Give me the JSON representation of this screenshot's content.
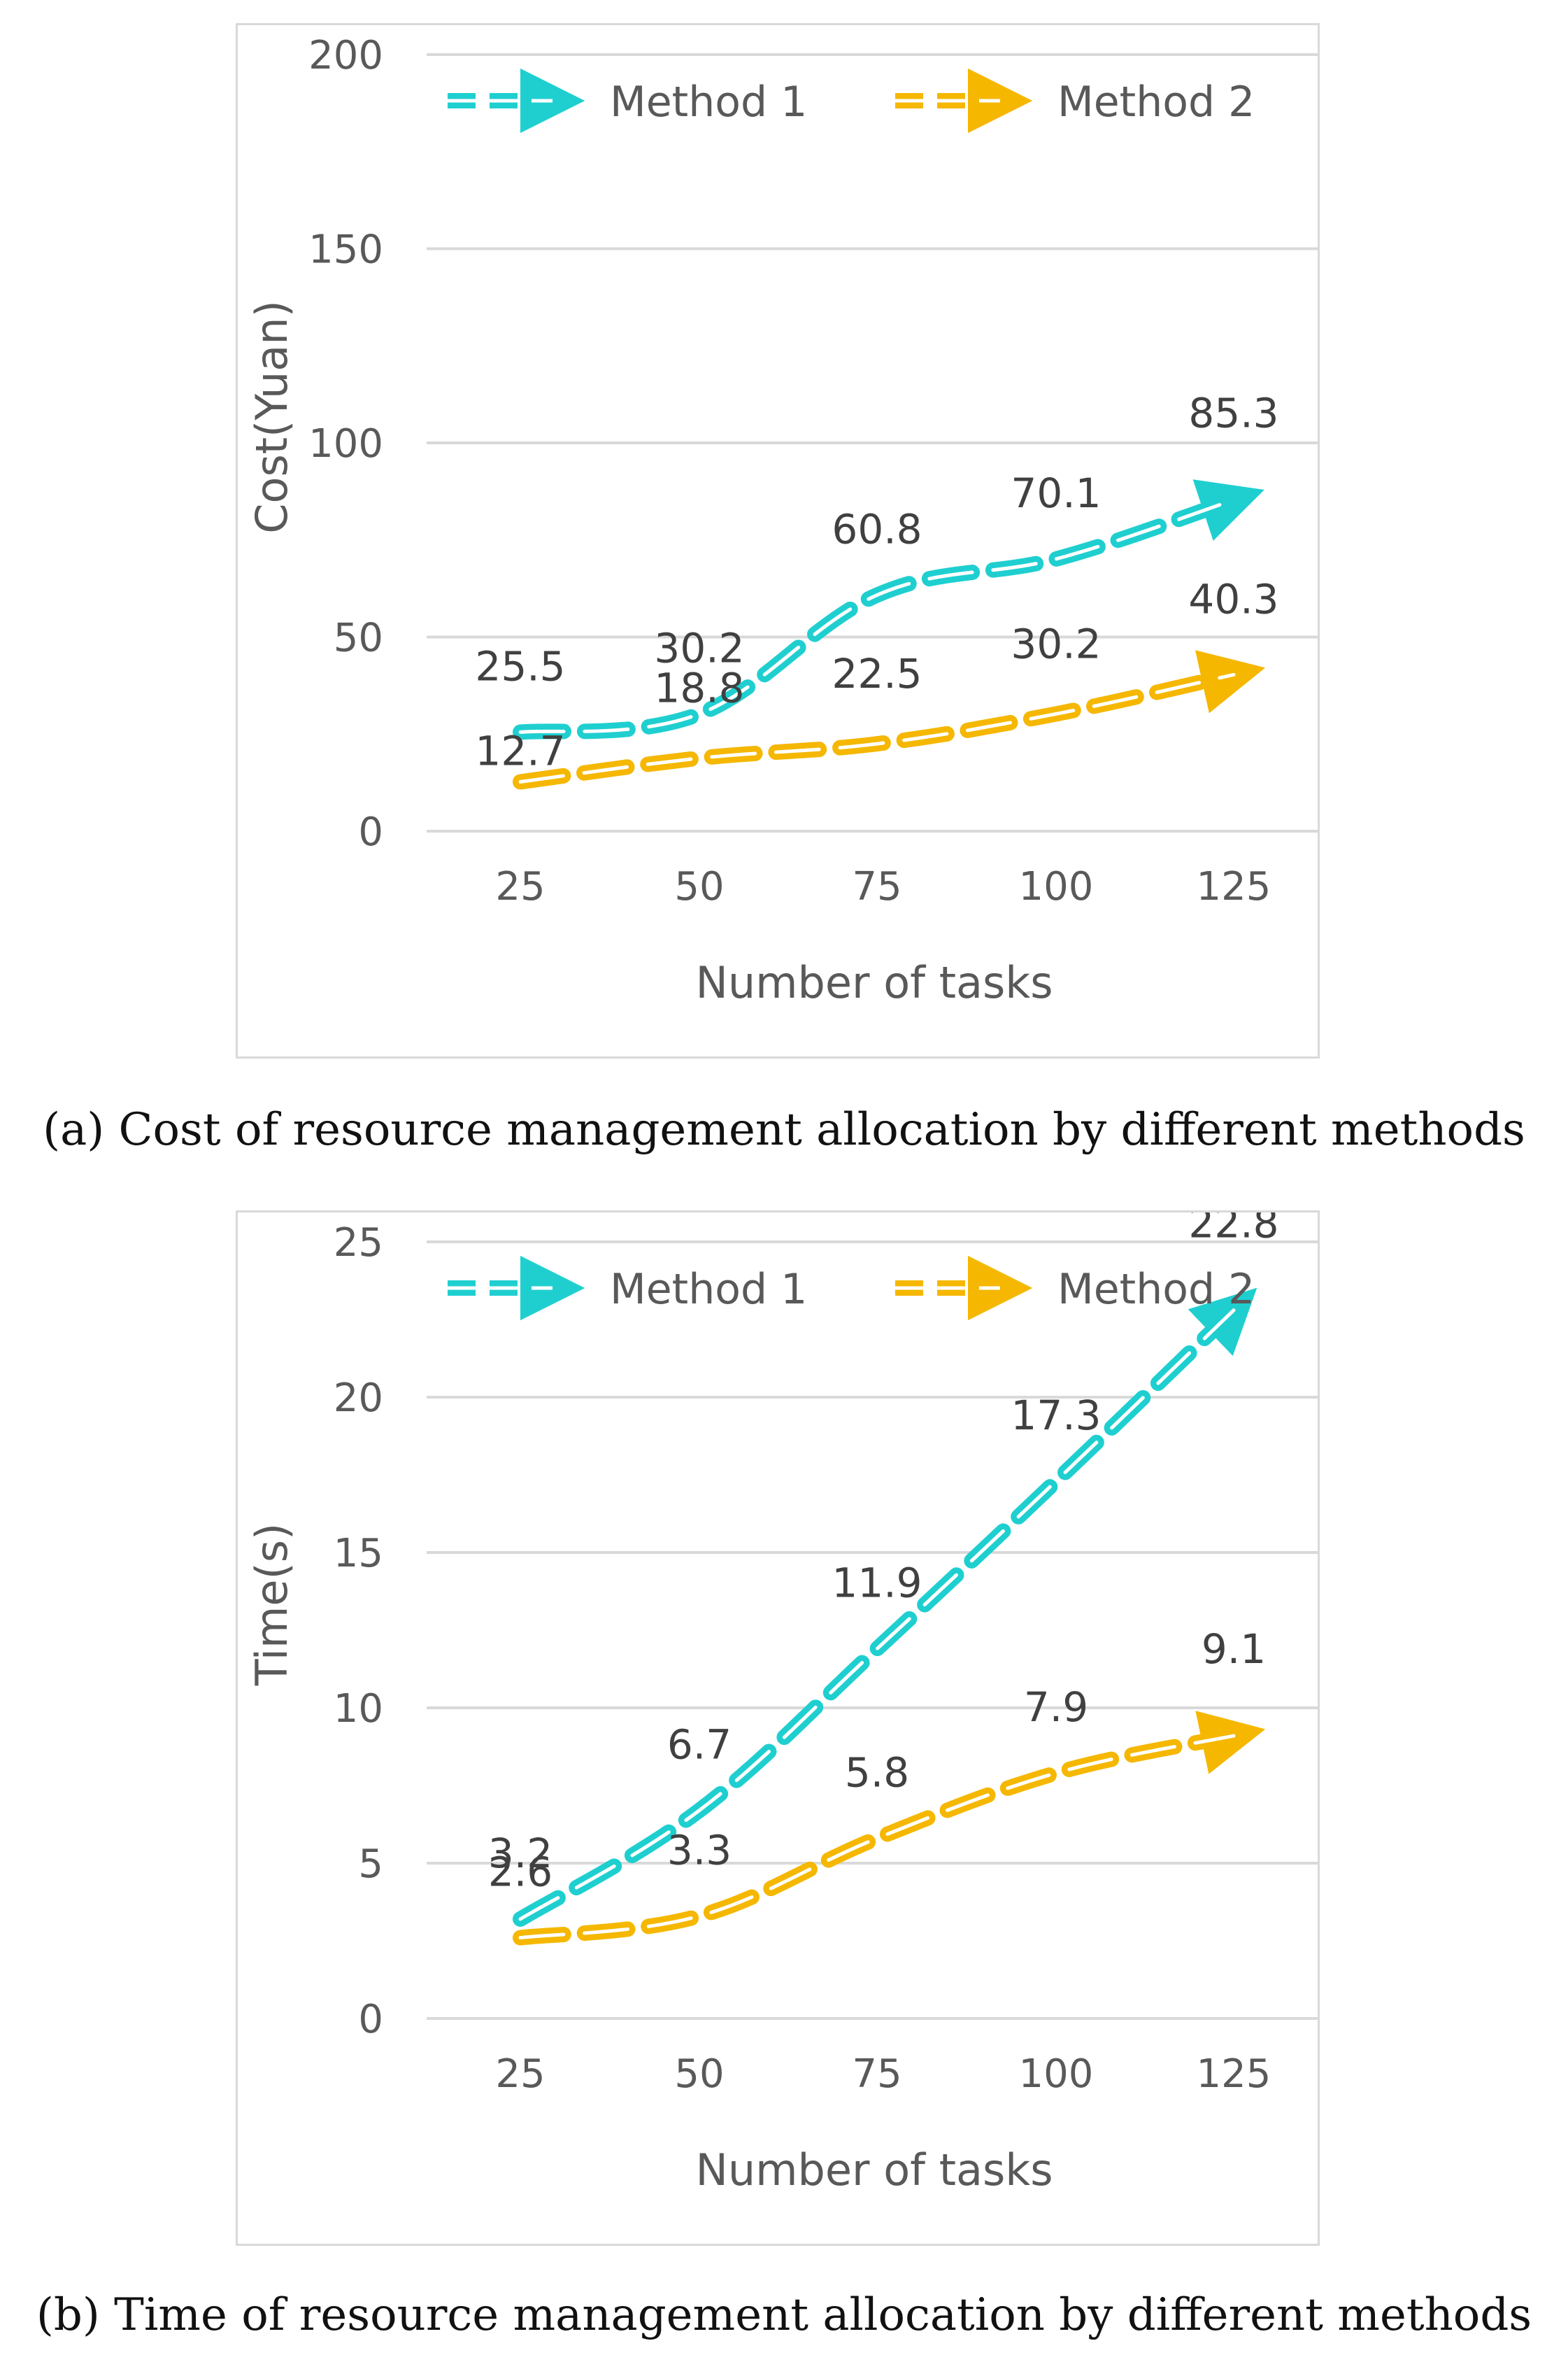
{
  "chart_data": [
    {
      "type": "line",
      "title": "",
      "caption": "(a) Cost of resource management allocation by different methods",
      "xlabel": "Number of tasks",
      "ylabel": "Cost(Yuan)",
      "categories": [
        "25",
        "50",
        "75",
        "100",
        "125"
      ],
      "yticks": [
        "0",
        "50",
        "100",
        "150",
        "200"
      ],
      "ylim": [
        0,
        200
      ],
      "grid": true,
      "legend_position": "top",
      "series": [
        {
          "name": "Method 1",
          "color": "#1fcfd0",
          "values": [
            25.5,
            30.2,
            60.8,
            70.1,
            85.3
          ],
          "labels": [
            "25.5",
            "30.2",
            "60.8",
            "70.1",
            "85.3"
          ]
        },
        {
          "name": "Method 2",
          "color": "#f5b700",
          "values": [
            12.7,
            18.8,
            22.5,
            30.2,
            40.3
          ],
          "labels": [
            "12.7",
            "18.8",
            "22.5",
            "30.2",
            "40.3"
          ]
        }
      ]
    },
    {
      "type": "line",
      "title": "",
      "caption": "(b) Time of resource management allocation by different methods",
      "xlabel": "Number of tasks",
      "ylabel": "Time(s)",
      "categories": [
        "25",
        "50",
        "75",
        "100",
        "125"
      ],
      "yticks": [
        "0",
        "5",
        "10",
        "15",
        "20",
        "25"
      ],
      "ylim": [
        0,
        25
      ],
      "grid": true,
      "legend_position": "top",
      "series": [
        {
          "name": "Method 1",
          "color": "#1fcfd0",
          "values": [
            3.2,
            6.7,
            11.9,
            17.3,
            22.8
          ],
          "labels": [
            "3.2",
            "6.7",
            "11.9",
            "17.3",
            "22.8"
          ]
        },
        {
          "name": "Method 2",
          "color": "#f5b700",
          "values": [
            2.6,
            3.3,
            5.8,
            7.9,
            9.1
          ],
          "labels": [
            "2.6",
            "3.3",
            "5.8",
            "7.9",
            "9.1"
          ]
        }
      ]
    }
  ]
}
